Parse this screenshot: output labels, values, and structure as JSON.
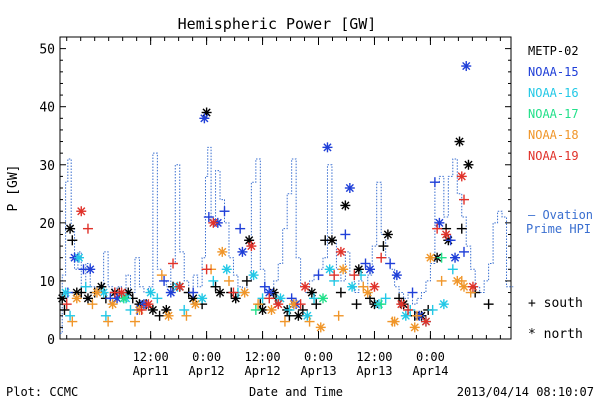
{
  "chart_data": {
    "type": "scatter",
    "title": "Hemispheric Power [GW]",
    "ylabel": "P [GW]",
    "xlabel": "Date and Time",
    "ylim": [
      0,
      52
    ],
    "xlim": [
      -0.31,
      3.72
    ],
    "x_units": "days since 2013-04-11 00:00",
    "yticks": [
      0,
      10,
      20,
      30,
      40,
      50
    ],
    "xticks": [
      {
        "x": 0.5,
        "line1": "12:00",
        "line2": "Apr11"
      },
      {
        "x": 1.0,
        "line1": "0:00",
        "line2": "Apr12"
      },
      {
        "x": 1.5,
        "line1": "12:00",
        "line2": "Apr12"
      },
      {
        "x": 2.0,
        "line1": "0:00",
        "line2": "Apr13"
      },
      {
        "x": 2.5,
        "line1": "12:00",
        "line2": "Apr13"
      },
      {
        "x": 3.0,
        "line1": "0:00",
        "line2": "Apr14"
      }
    ],
    "legend": [
      {
        "name": "METP-02",
        "color": "#000000"
      },
      {
        "name": "NOAA-15",
        "color": "#1f3fd8"
      },
      {
        "name": "NOAA-16",
        "color": "#22c8e6"
      },
      {
        "name": "NOAA-17",
        "color": "#22e08a"
      },
      {
        "name": "NOAA-18",
        "color": "#f0962a"
      },
      {
        "name": "NOAA-19",
        "color": "#e0322a"
      }
    ],
    "ovation_label": [
      "— Ovation",
      "Prime HPI"
    ],
    "ovation_color": "#3a6fd0",
    "marker_key": [
      {
        "symbol": "+",
        "label": "south"
      },
      {
        "symbol": "*",
        "label": "north"
      }
    ],
    "ovation": [
      [
        -0.31,
        1
      ],
      [
        -0.29,
        11
      ],
      [
        -0.26,
        27
      ],
      [
        -0.24,
        31
      ],
      [
        -0.21,
        19
      ],
      [
        -0.18,
        12
      ],
      [
        -0.15,
        15
      ],
      [
        -0.12,
        9
      ],
      [
        -0.08,
        13
      ],
      [
        -0.04,
        9
      ],
      [
        0.0,
        8
      ],
      [
        0.04,
        9
      ],
      [
        0.08,
        15
      ],
      [
        0.12,
        9
      ],
      [
        0.16,
        8
      ],
      [
        0.2,
        9
      ],
      [
        0.24,
        8
      ],
      [
        0.28,
        11
      ],
      [
        0.32,
        8
      ],
      [
        0.36,
        14
      ],
      [
        0.4,
        9
      ],
      [
        0.44,
        8
      ],
      [
        0.48,
        9
      ],
      [
        0.52,
        32
      ],
      [
        0.56,
        12
      ],
      [
        0.6,
        10
      ],
      [
        0.64,
        9
      ],
      [
        0.68,
        13
      ],
      [
        0.72,
        30
      ],
      [
        0.76,
        15
      ],
      [
        0.8,
        10
      ],
      [
        0.84,
        8
      ],
      [
        0.88,
        11
      ],
      [
        0.92,
        9
      ],
      [
        0.96,
        14
      ],
      [
        0.99,
        28
      ],
      [
        1.01,
        33
      ],
      [
        1.04,
        20
      ],
      [
        1.08,
        29
      ],
      [
        1.12,
        24
      ],
      [
        1.16,
        20
      ],
      [
        1.2,
        14
      ],
      [
        1.24,
        11
      ],
      [
        1.28,
        9
      ],
      [
        1.32,
        8
      ],
      [
        1.36,
        10
      ],
      [
        1.4,
        27
      ],
      [
        1.44,
        31
      ],
      [
        1.48,
        12
      ],
      [
        1.52,
        9
      ],
      [
        1.56,
        8
      ],
      [
        1.6,
        10
      ],
      [
        1.64,
        13
      ],
      [
        1.68,
        19
      ],
      [
        1.72,
        25
      ],
      [
        1.76,
        31
      ],
      [
        1.8,
        14
      ],
      [
        1.84,
        9
      ],
      [
        1.88,
        8
      ],
      [
        1.92,
        10
      ],
      [
        1.96,
        11
      ],
      [
        2.0,
        12
      ],
      [
        2.04,
        14
      ],
      [
        2.08,
        30
      ],
      [
        2.12,
        17
      ],
      [
        2.16,
        12
      ],
      [
        2.2,
        10
      ],
      [
        2.24,
        15
      ],
      [
        2.28,
        11
      ],
      [
        2.32,
        8
      ],
      [
        2.36,
        10
      ],
      [
        2.4,
        9
      ],
      [
        2.44,
        11
      ],
      [
        2.48,
        16
      ],
      [
        2.52,
        27
      ],
      [
        2.56,
        18
      ],
      [
        2.6,
        14
      ],
      [
        2.64,
        12
      ],
      [
        2.68,
        9
      ],
      [
        2.72,
        8
      ],
      [
        2.76,
        7
      ],
      [
        2.8,
        8
      ],
      [
        2.84,
        6
      ],
      [
        2.88,
        7
      ],
      [
        2.92,
        8
      ],
      [
        2.96,
        10
      ],
      [
        3.0,
        13
      ],
      [
        3.04,
        27
      ],
      [
        3.08,
        28
      ],
      [
        3.12,
        21
      ],
      [
        3.16,
        28
      ],
      [
        3.2,
        31
      ],
      [
        3.24,
        25
      ],
      [
        3.28,
        21
      ],
      [
        3.32,
        16
      ],
      [
        3.36,
        12
      ],
      [
        3.4,
        9
      ],
      [
        3.44,
        8
      ],
      [
        3.48,
        10
      ],
      [
        3.52,
        13
      ],
      [
        3.56,
        20
      ],
      [
        3.6,
        22
      ],
      [
        3.64,
        21
      ],
      [
        3.68,
        9
      ],
      [
        3.72,
        9
      ]
    ],
    "series": [
      {
        "name": "METP-02",
        "color": "#000000",
        "south": [
          [
            -0.27,
            5
          ],
          [
            -0.2,
            17
          ],
          [
            -0.12,
            8
          ],
          [
            0.0,
            8
          ],
          [
            0.1,
            7
          ],
          [
            0.22,
            8
          ],
          [
            0.34,
            7
          ],
          [
            0.46,
            6
          ],
          [
            0.58,
            4
          ],
          [
            0.7,
            9
          ],
          [
            0.84,
            8
          ],
          [
            0.96,
            6
          ],
          [
            1.08,
            9
          ],
          [
            1.22,
            8
          ],
          [
            1.36,
            10
          ],
          [
            1.48,
            6
          ],
          [
            1.62,
            7
          ],
          [
            1.74,
            4
          ],
          [
            1.86,
            5
          ],
          [
            1.98,
            6
          ],
          [
            2.06,
            17
          ],
          [
            2.2,
            8
          ],
          [
            2.34,
            6
          ],
          [
            2.46,
            7
          ],
          [
            2.58,
            16
          ],
          [
            2.72,
            7
          ],
          [
            2.86,
            4
          ],
          [
            2.98,
            5
          ],
          [
            3.14,
            19
          ],
          [
            3.28,
            19
          ],
          [
            3.4,
            8
          ],
          [
            3.52,
            6
          ]
        ],
        "north": [
          [
            -0.29,
            7
          ],
          [
            -0.22,
            19
          ],
          [
            -0.16,
            8
          ],
          [
            -0.06,
            7
          ],
          [
            0.06,
            9
          ],
          [
            0.18,
            8
          ],
          [
            0.3,
            8
          ],
          [
            0.4,
            6
          ],
          [
            0.52,
            5
          ],
          [
            0.64,
            5
          ],
          [
            0.76,
            9
          ],
          [
            0.88,
            7
          ],
          [
            1.0,
            39
          ],
          [
            1.12,
            8
          ],
          [
            1.26,
            7
          ],
          [
            1.38,
            17
          ],
          [
            1.5,
            5
          ],
          [
            1.6,
            8
          ],
          [
            1.72,
            5
          ],
          [
            1.82,
            4
          ],
          [
            1.94,
            8
          ],
          [
            2.12,
            17
          ],
          [
            2.24,
            23
          ],
          [
            2.36,
            12
          ],
          [
            2.5,
            6
          ],
          [
            2.62,
            18
          ],
          [
            2.76,
            6
          ],
          [
            2.92,
            4
          ],
          [
            3.06,
            14
          ],
          [
            3.16,
            17
          ],
          [
            3.26,
            34
          ],
          [
            3.34,
            30
          ]
        ]
      },
      {
        "name": "NOAA-15",
        "color": "#1f3fd8",
        "south": [
          [
            -0.24,
            8
          ],
          [
            -0.1,
            12
          ],
          [
            0.14,
            7
          ],
          [
            0.38,
            5
          ],
          [
            0.62,
            10
          ],
          [
            0.88,
            8
          ],
          [
            1.02,
            21
          ],
          [
            1.16,
            22
          ],
          [
            1.3,
            19
          ],
          [
            1.52,
            9
          ],
          [
            1.76,
            7
          ],
          [
            2.0,
            11
          ],
          [
            2.24,
            18
          ],
          [
            2.42,
            13
          ],
          [
            2.64,
            13
          ],
          [
            2.84,
            8
          ],
          [
            3.04,
            27
          ],
          [
            3.18,
            17
          ],
          [
            3.3,
            15
          ]
        ],
        "north": [
          [
            -0.18,
            14
          ],
          [
            -0.04,
            12
          ],
          [
            0.2,
            7
          ],
          [
            0.44,
            6
          ],
          [
            0.68,
            8
          ],
          [
            0.98,
            38
          ],
          [
            1.1,
            20
          ],
          [
            1.32,
            15
          ],
          [
            1.56,
            8
          ],
          [
            1.8,
            6
          ],
          [
            2.08,
            33
          ],
          [
            2.28,
            26
          ],
          [
            2.46,
            12
          ],
          [
            2.7,
            11
          ],
          [
            2.9,
            4
          ],
          [
            3.08,
            20
          ],
          [
            3.22,
            14
          ],
          [
            3.32,
            47
          ]
        ]
      },
      {
        "name": "NOAA-16",
        "color": "#22c8e6",
        "south": [
          [
            -0.22,
            4
          ],
          [
            -0.08,
            9
          ],
          [
            0.1,
            4
          ],
          [
            0.32,
            5
          ],
          [
            0.56,
            7
          ],
          [
            0.8,
            5
          ],
          [
            1.06,
            10
          ],
          [
            1.28,
            8
          ],
          [
            1.5,
            7
          ],
          [
            1.74,
            5
          ],
          [
            1.96,
            7
          ],
          [
            2.14,
            10
          ],
          [
            2.38,
            11
          ],
          [
            2.6,
            7
          ],
          [
            2.82,
            5
          ],
          [
            3.02,
            5
          ],
          [
            3.2,
            12
          ]
        ],
        "north": [
          [
            -0.26,
            8
          ],
          [
            -0.14,
            14
          ],
          [
            0.08,
            8
          ],
          [
            0.28,
            7
          ],
          [
            0.5,
            8
          ],
          [
            0.74,
            9
          ],
          [
            0.96,
            7
          ],
          [
            1.18,
            12
          ],
          [
            1.42,
            11
          ],
          [
            1.66,
            7
          ],
          [
            1.9,
            4
          ],
          [
            2.1,
            12
          ],
          [
            2.3,
            9
          ],
          [
            2.54,
            6
          ],
          [
            2.78,
            4
          ],
          [
            2.96,
            3
          ],
          [
            3.12,
            6
          ]
        ]
      },
      {
        "name": "NOAA-17",
        "color": "#22e08a",
        "south": [
          [
            1.44,
            5
          ],
          [
            2.56,
            6
          ],
          [
            3.1,
            14
          ]
        ],
        "north": [
          [
            0.26,
            7
          ],
          [
            2.04,
            7
          ]
        ]
      },
      {
        "name": "NOAA-18",
        "color": "#f0962a",
        "south": [
          [
            -0.2,
            3
          ],
          [
            -0.02,
            6
          ],
          [
            0.12,
            3
          ],
          [
            0.36,
            3
          ],
          [
            0.6,
            11
          ],
          [
            0.82,
            4
          ],
          [
            1.04,
            12
          ],
          [
            1.2,
            10
          ],
          [
            1.46,
            6
          ],
          [
            1.7,
            3
          ],
          [
            1.92,
            3
          ],
          [
            2.18,
            4
          ],
          [
            2.4,
            9
          ],
          [
            2.66,
            3
          ],
          [
            2.88,
            4
          ],
          [
            3.1,
            10
          ],
          [
            3.28,
            10
          ],
          [
            3.36,
            8
          ]
        ],
        "north": [
          [
            -0.16,
            7
          ],
          [
            0.02,
            8
          ],
          [
            0.16,
            6
          ],
          [
            0.4,
            5
          ],
          [
            0.66,
            4
          ],
          [
            0.9,
            6
          ],
          [
            1.14,
            15
          ],
          [
            1.34,
            8
          ],
          [
            1.58,
            5
          ],
          [
            1.78,
            6
          ],
          [
            2.02,
            2
          ],
          [
            2.22,
            12
          ],
          [
            2.44,
            8
          ],
          [
            2.68,
            3
          ],
          [
            2.86,
            2
          ],
          [
            3.0,
            14
          ],
          [
            3.24,
            10
          ],
          [
            3.3,
            9
          ]
        ]
      },
      {
        "name": "NOAA-19",
        "color": "#e0322a",
        "south": [
          [
            -0.25,
            6
          ],
          [
            -0.06,
            19
          ],
          [
            0.18,
            8
          ],
          [
            0.42,
            5
          ],
          [
            0.7,
            13
          ],
          [
            1.0,
            12
          ],
          [
            1.24,
            8
          ],
          [
            1.56,
            7
          ],
          [
            1.84,
            6
          ],
          [
            2.14,
            11
          ],
          [
            2.32,
            11
          ],
          [
            2.56,
            14
          ],
          [
            2.8,
            5
          ],
          [
            3.06,
            19
          ],
          [
            3.3,
            24
          ]
        ],
        "north": [
          [
            -0.12,
            22
          ],
          [
            0.24,
            8
          ],
          [
            0.48,
            6
          ],
          [
            0.76,
            9
          ],
          [
            1.06,
            20
          ],
          [
            1.4,
            16
          ],
          [
            1.64,
            6
          ],
          [
            1.88,
            9
          ],
          [
            2.2,
            15
          ],
          [
            2.5,
            9
          ],
          [
            2.74,
            6
          ],
          [
            2.96,
            3
          ],
          [
            3.14,
            18
          ],
          [
            3.28,
            28
          ],
          [
            3.38,
            9
          ]
        ]
      }
    ]
  },
  "footer": {
    "plot_label": "Plot: CCMC",
    "xlabel": "Date and Time",
    "timestamp": "2013/04/14 08:10:07"
  }
}
